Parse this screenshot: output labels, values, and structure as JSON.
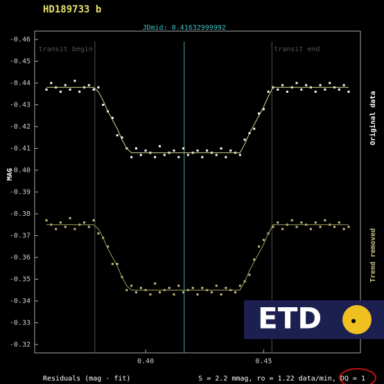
{
  "chart_data": {
    "type": "scatter",
    "title": "HD189733 b",
    "y_label": "MAG",
    "footer_left": "Residuals (mag - fit)",
    "footer_right": "S = 2.2 mmag, ro = 1.22 data/min, DQ = 1",
    "logo": "ETD",
    "xlim": [
      0.353,
      0.491
    ],
    "ylim": [
      -0.3162,
      -0.4638
    ],
    "xticks": [
      {
        "value": 0.4,
        "label": "0.40"
      },
      {
        "value": 0.45,
        "label": "0.45"
      }
    ],
    "yticks": [
      -0.46,
      -0.45,
      -0.44,
      -0.43,
      -0.42,
      -0.41,
      {
        "value": -0.4,
        "label": "-0.40"
      },
      -0.39,
      -0.38,
      -0.37,
      -0.36,
      -0.35,
      -0.34,
      -0.33,
      -0.32
    ],
    "grid": false,
    "vlines": [
      {
        "label": "transit begin",
        "x": 0.3785,
        "color": "#555555"
      },
      {
        "label": "transit end",
        "x": 0.4535,
        "color": "#555555"
      },
      {
        "label": "JDmid: 0.41632999992",
        "x": 0.41633,
        "color": "#40b0b0"
      }
    ],
    "x": [
      0.358,
      0.36,
      0.362,
      0.364,
      0.366,
      0.368,
      0.37,
      0.372,
      0.374,
      0.376,
      0.378,
      0.38,
      0.382,
      0.384,
      0.386,
      0.388,
      0.39,
      0.392,
      0.394,
      0.396,
      0.398,
      0.4,
      0.402,
      0.404,
      0.406,
      0.408,
      0.41,
      0.412,
      0.414,
      0.416,
      0.418,
      0.42,
      0.422,
      0.424,
      0.426,
      0.428,
      0.43,
      0.432,
      0.434,
      0.436,
      0.438,
      0.44,
      0.442,
      0.444,
      0.446,
      0.448,
      0.45,
      0.452,
      0.454,
      0.456,
      0.458,
      0.46,
      0.462,
      0.464,
      0.466,
      0.468,
      0.47,
      0.472,
      0.474,
      0.476,
      0.478,
      0.48,
      0.482,
      0.484,
      0.486
    ],
    "series": [
      {
        "name": "Original data",
        "kind": "points",
        "color": "#ffffff",
        "values": [
          -0.437,
          -0.44,
          -0.438,
          -0.436,
          -0.439,
          -0.437,
          -0.441,
          -0.436,
          -0.438,
          -0.439,
          -0.437,
          -0.438,
          -0.43,
          -0.427,
          -0.424,
          -0.416,
          -0.415,
          -0.41,
          -0.406,
          -0.41,
          -0.407,
          -0.409,
          -0.408,
          -0.406,
          -0.411,
          -0.407,
          -0.408,
          -0.409,
          -0.406,
          -0.41,
          -0.407,
          -0.408,
          -0.409,
          -0.406,
          -0.409,
          -0.408,
          -0.407,
          -0.41,
          -0.406,
          -0.409,
          -0.408,
          -0.407,
          -0.414,
          -0.417,
          -0.419,
          -0.426,
          -0.428,
          -0.436,
          -0.438,
          -0.437,
          -0.439,
          -0.436,
          -0.438,
          -0.44,
          -0.437,
          -0.439,
          -0.438,
          -0.436,
          -0.439,
          -0.437,
          -0.44,
          -0.438,
          -0.437,
          -0.439,
          -0.436
        ]
      },
      {
        "kind": "line",
        "color": "#d8d890",
        "values": [
          -0.438,
          -0.438,
          -0.438,
          -0.438,
          -0.438,
          -0.438,
          -0.438,
          -0.438,
          -0.438,
          -0.438,
          -0.438,
          -0.436,
          -0.432,
          -0.427,
          -0.423,
          -0.419,
          -0.414,
          -0.41,
          -0.408,
          -0.408,
          -0.408,
          -0.408,
          -0.408,
          -0.408,
          -0.408,
          -0.408,
          -0.408,
          -0.408,
          -0.408,
          -0.408,
          -0.408,
          -0.408,
          -0.408,
          -0.408,
          -0.408,
          -0.408,
          -0.408,
          -0.408,
          -0.408,
          -0.408,
          -0.408,
          -0.408,
          -0.412,
          -0.417,
          -0.421,
          -0.425,
          -0.429,
          -0.434,
          -0.438,
          -0.438,
          -0.438,
          -0.438,
          -0.438,
          -0.438,
          -0.438,
          -0.438,
          -0.438,
          -0.438,
          -0.438,
          -0.438,
          -0.438,
          -0.438,
          -0.438,
          -0.438,
          -0.438
        ]
      },
      {
        "name": "Trend removed",
        "kind": "points",
        "color": "#c8c080",
        "values": [
          -0.377,
          -0.375,
          -0.373,
          -0.376,
          -0.374,
          -0.378,
          -0.373,
          -0.375,
          -0.376,
          -0.374,
          -0.377,
          -0.371,
          -0.369,
          -0.365,
          -0.357,
          -0.357,
          -0.351,
          -0.345,
          -0.347,
          -0.344,
          -0.346,
          -0.345,
          -0.343,
          -0.348,
          -0.344,
          -0.345,
          -0.346,
          -0.343,
          -0.347,
          -0.344,
          -0.345,
          -0.346,
          -0.343,
          -0.346,
          -0.345,
          -0.344,
          -0.347,
          -0.343,
          -0.346,
          -0.345,
          -0.344,
          -0.347,
          -0.349,
          -0.352,
          -0.359,
          -0.365,
          -0.368,
          -0.371,
          -0.374,
          -0.376,
          -0.373,
          -0.375,
          -0.377,
          -0.374,
          -0.376,
          -0.375,
          -0.373,
          -0.376,
          -0.374,
          -0.377,
          -0.375,
          -0.374,
          -0.376,
          -0.373,
          -0.374
        ]
      },
      {
        "kind": "line",
        "color": "#a0a060",
        "values": [
          -0.375,
          -0.375,
          -0.375,
          -0.375,
          -0.375,
          -0.375,
          -0.375,
          -0.375,
          -0.375,
          -0.375,
          -0.375,
          -0.373,
          -0.369,
          -0.364,
          -0.36,
          -0.356,
          -0.351,
          -0.347,
          -0.345,
          -0.345,
          -0.345,
          -0.345,
          -0.345,
          -0.345,
          -0.345,
          -0.345,
          -0.345,
          -0.345,
          -0.345,
          -0.345,
          -0.345,
          -0.345,
          -0.345,
          -0.345,
          -0.345,
          -0.345,
          -0.345,
          -0.345,
          -0.345,
          -0.345,
          -0.345,
          -0.345,
          -0.349,
          -0.354,
          -0.358,
          -0.362,
          -0.366,
          -0.371,
          -0.375,
          -0.375,
          -0.375,
          -0.375,
          -0.375,
          -0.375,
          -0.375,
          -0.375,
          -0.375,
          -0.375,
          -0.375,
          -0.375,
          -0.375,
          -0.375,
          -0.375,
          -0.375,
          -0.375
        ]
      }
    ]
  }
}
